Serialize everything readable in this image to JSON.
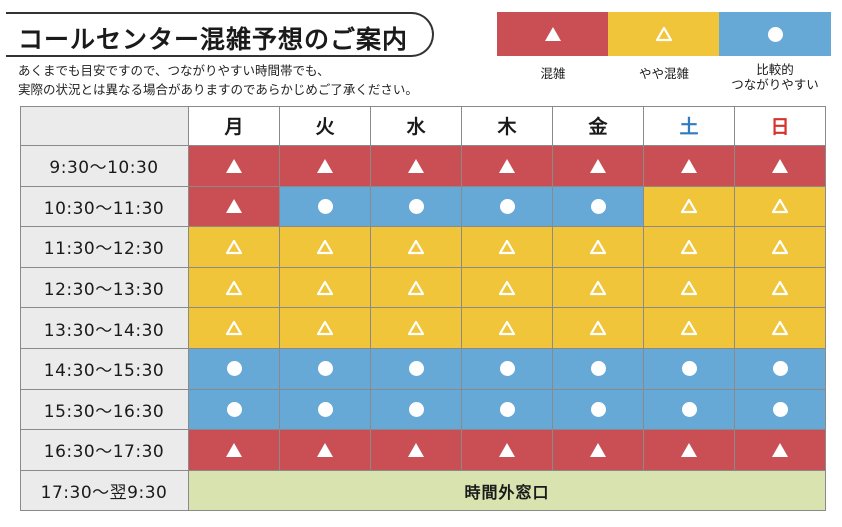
{
  "title": "コールセンター混雑予想のご案内",
  "note_lines": [
    "あくまでも目安ですので、つながりやすい時間帯でも、",
    "実際の状況とは異なる場合がありますのであらかじめご了承ください。"
  ],
  "colors": {
    "busy": "#c94f55",
    "somewhat_busy": "#f0c53a",
    "available": "#66a8d6",
    "closed": "#d8e3b0",
    "saturday": "#2f7cc0",
    "sunday": "#d8322c"
  },
  "legend": [
    {
      "key": "busy",
      "icon": "filled-triangle-icon",
      "label_lines": [
        "混雑"
      ]
    },
    {
      "key": "somewhat_busy",
      "icon": "outline-triangle-icon",
      "label_lines": [
        "やや混雑"
      ]
    },
    {
      "key": "available",
      "icon": "circle-icon",
      "label_lines": [
        "比較的",
        "つながりやすい"
      ]
    }
  ],
  "days": [
    {
      "label": "月",
      "color": "default"
    },
    {
      "label": "火",
      "color": "default"
    },
    {
      "label": "水",
      "color": "default"
    },
    {
      "label": "木",
      "color": "default"
    },
    {
      "label": "金",
      "color": "default"
    },
    {
      "label": "土",
      "color": "saturday"
    },
    {
      "label": "日",
      "color": "sunday"
    }
  ],
  "rows": [
    {
      "time": "9:30〜10:30",
      "levels": [
        "busy",
        "busy",
        "busy",
        "busy",
        "busy",
        "busy",
        "busy"
      ]
    },
    {
      "time": "10:30〜11:30",
      "levels": [
        "busy",
        "available",
        "available",
        "available",
        "available",
        "somewhat_busy",
        "somewhat_busy"
      ]
    },
    {
      "time": "11:30〜12:30",
      "levels": [
        "somewhat_busy",
        "somewhat_busy",
        "somewhat_busy",
        "somewhat_busy",
        "somewhat_busy",
        "somewhat_busy",
        "somewhat_busy"
      ]
    },
    {
      "time": "12:30〜13:30",
      "levels": [
        "somewhat_busy",
        "somewhat_busy",
        "somewhat_busy",
        "somewhat_busy",
        "somewhat_busy",
        "somewhat_busy",
        "somewhat_busy"
      ]
    },
    {
      "time": "13:30〜14:30",
      "levels": [
        "somewhat_busy",
        "somewhat_busy",
        "somewhat_busy",
        "somewhat_busy",
        "somewhat_busy",
        "somewhat_busy",
        "somewhat_busy"
      ]
    },
    {
      "time": "14:30〜15:30",
      "levels": [
        "available",
        "available",
        "available",
        "available",
        "available",
        "available",
        "available"
      ]
    },
    {
      "time": "15:30〜16:30",
      "levels": [
        "available",
        "available",
        "available",
        "available",
        "available",
        "available",
        "available"
      ]
    },
    {
      "time": "16:30〜17:30",
      "levels": [
        "busy",
        "busy",
        "busy",
        "busy",
        "busy",
        "busy",
        "busy"
      ]
    }
  ],
  "closed_row": {
    "time": "17:30〜翌9:30",
    "label": "時間外窓口"
  }
}
